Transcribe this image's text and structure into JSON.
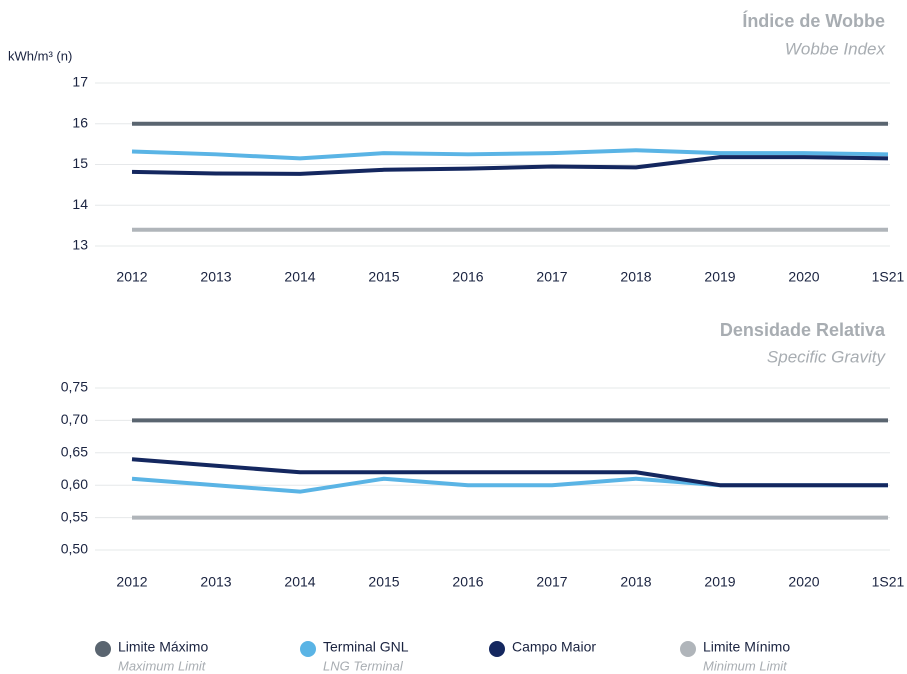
{
  "chart_data": [
    {
      "type": "line",
      "title": "Índice de Wobbe",
      "subtitle": "Wobbe Index",
      "y_label": "kWh/m³ (n)",
      "categories": [
        "2012",
        "2013",
        "2014",
        "2015",
        "2016",
        "2017",
        "2018",
        "2019",
        "2020",
        "1S21"
      ],
      "ylim": [
        13,
        17
      ],
      "yticks": [
        13,
        14,
        15,
        16,
        17
      ],
      "grid": true,
      "series": [
        {
          "name": "Limite Máximo",
          "color": "#5a6570",
          "values": [
            16,
            16,
            16,
            16,
            16,
            16,
            16,
            16,
            16,
            16
          ]
        },
        {
          "name": "Terminal GNL",
          "color": "#5ab4e5",
          "values": [
            15.32,
            15.25,
            15.15,
            15.28,
            15.25,
            15.28,
            15.35,
            15.28,
            15.28,
            15.25
          ]
        },
        {
          "name": "Campo Maior",
          "color": "#14275f",
          "values": [
            14.82,
            14.78,
            14.77,
            14.87,
            14.9,
            14.95,
            14.93,
            15.18,
            15.18,
            15.15
          ]
        },
        {
          "name": "Limite Mínimo",
          "color": "#b0b5ba",
          "values": [
            13.4,
            13.4,
            13.4,
            13.4,
            13.4,
            13.4,
            13.4,
            13.4,
            13.4,
            13.4
          ]
        }
      ]
    },
    {
      "type": "line",
      "title": "Densidade Relativa",
      "subtitle": "Specific Gravity",
      "categories": [
        "2012",
        "2013",
        "2014",
        "2015",
        "2016",
        "2017",
        "2018",
        "2019",
        "2020",
        "1S21"
      ],
      "ylim": [
        0.5,
        0.75
      ],
      "yticks": [
        {
          "value": 0.5,
          "label": "0,50"
        },
        {
          "value": 0.55,
          "label": "0,55"
        },
        {
          "value": 0.6,
          "label": "0,60"
        },
        {
          "value": 0.65,
          "label": "0,65"
        },
        {
          "value": 0.7,
          "label": "0,70"
        },
        {
          "value": 0.75,
          "label": "0,75"
        }
      ],
      "grid": true,
      "series": [
        {
          "name": "Limite Máximo",
          "color": "#5a6570",
          "values": [
            0.7,
            0.7,
            0.7,
            0.7,
            0.7,
            0.7,
            0.7,
            0.7,
            0.7,
            0.7
          ]
        },
        {
          "name": "Terminal GNL",
          "color": "#5ab4e5",
          "values": [
            0.61,
            0.6,
            0.59,
            0.61,
            0.6,
            0.6,
            0.61,
            0.6,
            0.6,
            0.6
          ]
        },
        {
          "name": "Campo Maior",
          "color": "#14275f",
          "values": [
            0.64,
            0.63,
            0.62,
            0.62,
            0.62,
            0.62,
            0.62,
            0.6,
            0.6,
            0.6
          ]
        },
        {
          "name": "Limite Mínimo",
          "color": "#b0b5ba",
          "values": [
            0.55,
            0.55,
            0.55,
            0.55,
            0.55,
            0.55,
            0.55,
            0.55,
            0.55,
            0.55
          ]
        }
      ]
    }
  ],
  "legend_translations": [
    "Maximum Limit",
    "LNG Terminal",
    "Minimum Limit"
  ]
}
